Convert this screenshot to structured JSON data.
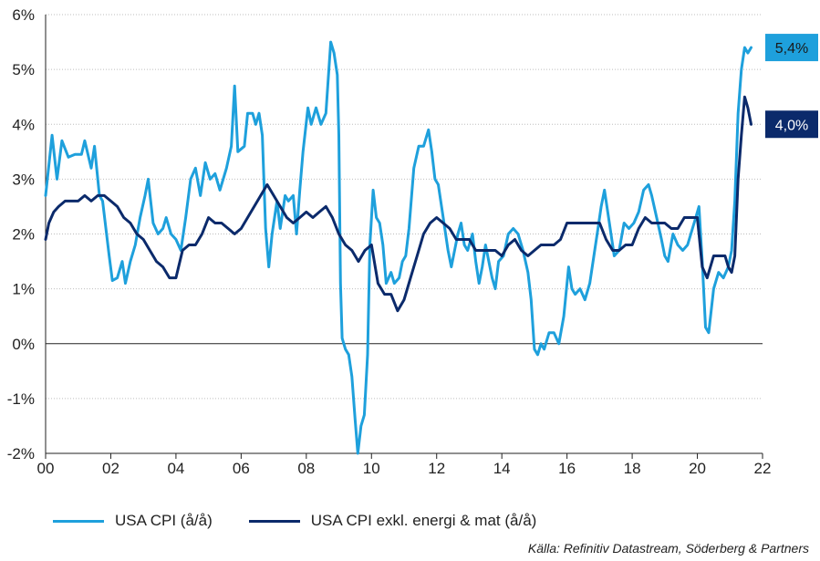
{
  "chart_data": {
    "type": "line",
    "xlim": [
      2000,
      2022
    ],
    "ylim": [
      -2,
      6
    ],
    "x_ticks": [
      2000,
      2002,
      2004,
      2006,
      2008,
      2010,
      2012,
      2014,
      2016,
      2018,
      2020,
      2022
    ],
    "x_tick_labels": [
      "00",
      "02",
      "04",
      "06",
      "08",
      "10",
      "12",
      "14",
      "16",
      "18",
      "20",
      "22"
    ],
    "y_ticks": [
      -2,
      -1,
      0,
      1,
      2,
      3,
      4,
      5,
      6
    ],
    "y_tick_labels": [
      "-2%",
      "-1%",
      "0%",
      "1%",
      "2%",
      "3%",
      "4%",
      "5%",
      "6%"
    ],
    "grid": "horizontal-dotted",
    "legend_placement": "bottom",
    "series": [
      {
        "name": "USA CPI (å/å)",
        "color": "#1ea0dc",
        "end_label": "5,4%",
        "points": [
          [
            2000.0,
            2.7
          ],
          [
            2000.2,
            3.8
          ],
          [
            2000.35,
            3.0
          ],
          [
            2000.5,
            3.7
          ],
          [
            2000.7,
            3.4
          ],
          [
            2000.9,
            3.45
          ],
          [
            2001.1,
            3.45
          ],
          [
            2001.2,
            3.7
          ],
          [
            2001.4,
            3.2
          ],
          [
            2001.5,
            3.6
          ],
          [
            2001.65,
            2.7
          ],
          [
            2001.75,
            2.6
          ],
          [
            2001.85,
            2.1
          ],
          [
            2001.95,
            1.6
          ],
          [
            2002.05,
            1.15
          ],
          [
            2002.2,
            1.2
          ],
          [
            2002.35,
            1.5
          ],
          [
            2002.45,
            1.1
          ],
          [
            2002.6,
            1.5
          ],
          [
            2002.75,
            1.8
          ],
          [
            2002.9,
            2.3
          ],
          [
            2003.05,
            2.7
          ],
          [
            2003.15,
            3.0
          ],
          [
            2003.3,
            2.2
          ],
          [
            2003.45,
            2.0
          ],
          [
            2003.6,
            2.1
          ],
          [
            2003.7,
            2.3
          ],
          [
            2003.85,
            2.0
          ],
          [
            2004.0,
            1.9
          ],
          [
            2004.15,
            1.7
          ],
          [
            2004.3,
            2.3
          ],
          [
            2004.45,
            3.0
          ],
          [
            2004.6,
            3.2
          ],
          [
            2004.75,
            2.7
          ],
          [
            2004.9,
            3.3
          ],
          [
            2005.05,
            3.0
          ],
          [
            2005.2,
            3.1
          ],
          [
            2005.35,
            2.8
          ],
          [
            2005.55,
            3.2
          ],
          [
            2005.7,
            3.6
          ],
          [
            2005.8,
            4.7
          ],
          [
            2005.9,
            3.5
          ],
          [
            2006.1,
            3.6
          ],
          [
            2006.2,
            4.2
          ],
          [
            2006.35,
            4.2
          ],
          [
            2006.45,
            4.0
          ],
          [
            2006.55,
            4.2
          ],
          [
            2006.65,
            3.8
          ],
          [
            2006.75,
            2.1
          ],
          [
            2006.85,
            1.4
          ],
          [
            2006.95,
            2.0
          ],
          [
            2007.1,
            2.6
          ],
          [
            2007.2,
            2.1
          ],
          [
            2007.35,
            2.7
          ],
          [
            2007.45,
            2.6
          ],
          [
            2007.6,
            2.7
          ],
          [
            2007.7,
            2.0
          ],
          [
            2007.8,
            2.8
          ],
          [
            2007.9,
            3.5
          ],
          [
            2008.05,
            4.3
          ],
          [
            2008.15,
            4.0
          ],
          [
            2008.3,
            4.3
          ],
          [
            2008.45,
            4.0
          ],
          [
            2008.6,
            4.2
          ],
          [
            2008.75,
            5.5
          ],
          [
            2008.85,
            5.3
          ],
          [
            2008.95,
            4.9
          ],
          [
            2009.0,
            3.8
          ],
          [
            2009.05,
            1.1
          ],
          [
            2009.1,
            0.1
          ],
          [
            2009.2,
            -0.1
          ],
          [
            2009.3,
            -0.2
          ],
          [
            2009.4,
            -0.6
          ],
          [
            2009.5,
            -1.4
          ],
          [
            2009.58,
            -2.0
          ],
          [
            2009.68,
            -1.5
          ],
          [
            2009.78,
            -1.3
          ],
          [
            2009.88,
            -0.2
          ],
          [
            2009.95,
            1.8
          ],
          [
            2010.05,
            2.8
          ],
          [
            2010.15,
            2.3
          ],
          [
            2010.25,
            2.2
          ],
          [
            2010.35,
            1.8
          ],
          [
            2010.45,
            1.1
          ],
          [
            2010.6,
            1.3
          ],
          [
            2010.7,
            1.1
          ],
          [
            2010.85,
            1.2
          ],
          [
            2010.95,
            1.5
          ],
          [
            2011.05,
            1.6
          ],
          [
            2011.15,
            2.1
          ],
          [
            2011.3,
            3.2
          ],
          [
            2011.45,
            3.6
          ],
          [
            2011.6,
            3.6
          ],
          [
            2011.75,
            3.9
          ],
          [
            2011.85,
            3.5
          ],
          [
            2011.95,
            3.0
          ],
          [
            2012.05,
            2.9
          ],
          [
            2012.2,
            2.3
          ],
          [
            2012.35,
            1.7
          ],
          [
            2012.45,
            1.4
          ],
          [
            2012.55,
            1.7
          ],
          [
            2012.65,
            2.0
          ],
          [
            2012.75,
            2.2
          ],
          [
            2012.85,
            1.8
          ],
          [
            2012.95,
            1.7
          ],
          [
            2013.1,
            2.0
          ],
          [
            2013.2,
            1.5
          ],
          [
            2013.3,
            1.1
          ],
          [
            2013.4,
            1.4
          ],
          [
            2013.5,
            1.8
          ],
          [
            2013.6,
            1.5
          ],
          [
            2013.7,
            1.2
          ],
          [
            2013.8,
            1.0
          ],
          [
            2013.9,
            1.5
          ],
          [
            2014.05,
            1.6
          ],
          [
            2014.2,
            2.0
          ],
          [
            2014.35,
            2.1
          ],
          [
            2014.5,
            2.0
          ],
          [
            2014.65,
            1.7
          ],
          [
            2014.8,
            1.3
          ],
          [
            2014.9,
            0.8
          ],
          [
            2015.0,
            -0.1
          ],
          [
            2015.1,
            -0.2
          ],
          [
            2015.2,
            0.0
          ],
          [
            2015.3,
            -0.1
          ],
          [
            2015.45,
            0.2
          ],
          [
            2015.6,
            0.2
          ],
          [
            2015.75,
            0.0
          ],
          [
            2015.9,
            0.5
          ],
          [
            2016.05,
            1.4
          ],
          [
            2016.15,
            1.0
          ],
          [
            2016.25,
            0.9
          ],
          [
            2016.4,
            1.0
          ],
          [
            2016.55,
            0.8
          ],
          [
            2016.7,
            1.1
          ],
          [
            2016.85,
            1.7
          ],
          [
            2016.95,
            2.1
          ],
          [
            2017.05,
            2.5
          ],
          [
            2017.15,
            2.8
          ],
          [
            2017.3,
            2.2
          ],
          [
            2017.45,
            1.6
          ],
          [
            2017.6,
            1.7
          ],
          [
            2017.75,
            2.2
          ],
          [
            2017.9,
            2.1
          ],
          [
            2018.05,
            2.2
          ],
          [
            2018.2,
            2.4
          ],
          [
            2018.35,
            2.8
          ],
          [
            2018.5,
            2.9
          ],
          [
            2018.6,
            2.7
          ],
          [
            2018.75,
            2.3
          ],
          [
            2018.9,
            1.9
          ],
          [
            2019.0,
            1.6
          ],
          [
            2019.1,
            1.5
          ],
          [
            2019.25,
            2.0
          ],
          [
            2019.4,
            1.8
          ],
          [
            2019.55,
            1.7
          ],
          [
            2019.7,
            1.8
          ],
          [
            2019.85,
            2.1
          ],
          [
            2019.95,
            2.3
          ],
          [
            2020.05,
            2.5
          ],
          [
            2020.15,
            1.5
          ],
          [
            2020.25,
            0.3
          ],
          [
            2020.35,
            0.2
          ],
          [
            2020.5,
            1.0
          ],
          [
            2020.65,
            1.3
          ],
          [
            2020.8,
            1.2
          ],
          [
            2020.95,
            1.4
          ],
          [
            2021.05,
            1.7
          ],
          [
            2021.15,
            2.6
          ],
          [
            2021.25,
            4.2
          ],
          [
            2021.35,
            5.0
          ],
          [
            2021.45,
            5.4
          ],
          [
            2021.55,
            5.3
          ],
          [
            2021.65,
            5.4
          ]
        ]
      },
      {
        "name": "USA CPI exkl. energi & mat (å/å)",
        "color": "#0b2a6b",
        "end_label": "4,0%",
        "points": [
          [
            2000.0,
            1.9
          ],
          [
            2000.1,
            2.2
          ],
          [
            2000.25,
            2.4
          ],
          [
            2000.4,
            2.5
          ],
          [
            2000.6,
            2.6
          ],
          [
            2000.8,
            2.6
          ],
          [
            2001.0,
            2.6
          ],
          [
            2001.2,
            2.7
          ],
          [
            2001.4,
            2.6
          ],
          [
            2001.6,
            2.7
          ],
          [
            2001.8,
            2.7
          ],
          [
            2002.0,
            2.6
          ],
          [
            2002.2,
            2.5
          ],
          [
            2002.4,
            2.3
          ],
          [
            2002.6,
            2.2
          ],
          [
            2002.8,
            2.0
          ],
          [
            2003.0,
            1.9
          ],
          [
            2003.2,
            1.7
          ],
          [
            2003.4,
            1.5
          ],
          [
            2003.6,
            1.4
          ],
          [
            2003.8,
            1.2
          ],
          [
            2004.0,
            1.2
          ],
          [
            2004.2,
            1.7
          ],
          [
            2004.4,
            1.8
          ],
          [
            2004.6,
            1.8
          ],
          [
            2004.8,
            2.0
          ],
          [
            2005.0,
            2.3
          ],
          [
            2005.2,
            2.2
          ],
          [
            2005.4,
            2.2
          ],
          [
            2005.6,
            2.1
          ],
          [
            2005.8,
            2.0
          ],
          [
            2006.0,
            2.1
          ],
          [
            2006.2,
            2.3
          ],
          [
            2006.4,
            2.5
          ],
          [
            2006.6,
            2.7
          ],
          [
            2006.8,
            2.9
          ],
          [
            2007.0,
            2.7
          ],
          [
            2007.2,
            2.5
          ],
          [
            2007.4,
            2.3
          ],
          [
            2007.6,
            2.2
          ],
          [
            2007.8,
            2.3
          ],
          [
            2008.0,
            2.4
          ],
          [
            2008.2,
            2.3
          ],
          [
            2008.4,
            2.4
          ],
          [
            2008.6,
            2.5
          ],
          [
            2008.8,
            2.3
          ],
          [
            2009.0,
            2.0
          ],
          [
            2009.2,
            1.8
          ],
          [
            2009.4,
            1.7
          ],
          [
            2009.6,
            1.5
          ],
          [
            2009.8,
            1.7
          ],
          [
            2010.0,
            1.8
          ],
          [
            2010.2,
            1.1
          ],
          [
            2010.4,
            0.9
          ],
          [
            2010.6,
            0.9
          ],
          [
            2010.8,
            0.6
          ],
          [
            2011.0,
            0.8
          ],
          [
            2011.2,
            1.2
          ],
          [
            2011.4,
            1.6
          ],
          [
            2011.6,
            2.0
          ],
          [
            2011.8,
            2.2
          ],
          [
            2012.0,
            2.3
          ],
          [
            2012.2,
            2.2
          ],
          [
            2012.4,
            2.1
          ],
          [
            2012.6,
            1.9
          ],
          [
            2012.8,
            1.9
          ],
          [
            2013.0,
            1.9
          ],
          [
            2013.2,
            1.7
          ],
          [
            2013.4,
            1.7
          ],
          [
            2013.6,
            1.7
          ],
          [
            2013.8,
            1.7
          ],
          [
            2014.0,
            1.6
          ],
          [
            2014.2,
            1.8
          ],
          [
            2014.4,
            1.9
          ],
          [
            2014.6,
            1.7
          ],
          [
            2014.8,
            1.6
          ],
          [
            2015.0,
            1.7
          ],
          [
            2015.2,
            1.8
          ],
          [
            2015.4,
            1.8
          ],
          [
            2015.6,
            1.8
          ],
          [
            2015.8,
            1.9
          ],
          [
            2016.0,
            2.2
          ],
          [
            2016.2,
            2.2
          ],
          [
            2016.4,
            2.2
          ],
          [
            2016.6,
            2.2
          ],
          [
            2016.8,
            2.2
          ],
          [
            2017.0,
            2.2
          ],
          [
            2017.2,
            1.9
          ],
          [
            2017.4,
            1.7
          ],
          [
            2017.6,
            1.7
          ],
          [
            2017.8,
            1.8
          ],
          [
            2018.0,
            1.8
          ],
          [
            2018.2,
            2.1
          ],
          [
            2018.4,
            2.3
          ],
          [
            2018.6,
            2.2
          ],
          [
            2018.8,
            2.2
          ],
          [
            2019.0,
            2.2
          ],
          [
            2019.2,
            2.1
          ],
          [
            2019.4,
            2.1
          ],
          [
            2019.6,
            2.3
          ],
          [
            2019.8,
            2.3
          ],
          [
            2020.0,
            2.3
          ],
          [
            2020.15,
            1.4
          ],
          [
            2020.3,
            1.2
          ],
          [
            2020.5,
            1.6
          ],
          [
            2020.7,
            1.6
          ],
          [
            2020.85,
            1.6
          ],
          [
            2020.95,
            1.4
          ],
          [
            2021.05,
            1.3
          ],
          [
            2021.15,
            1.6
          ],
          [
            2021.25,
            3.0
          ],
          [
            2021.35,
            3.8
          ],
          [
            2021.45,
            4.5
          ],
          [
            2021.55,
            4.3
          ],
          [
            2021.65,
            4.0
          ]
        ]
      }
    ]
  },
  "source": "Källa: Refinitiv Datastream, Söderberg & Partners"
}
